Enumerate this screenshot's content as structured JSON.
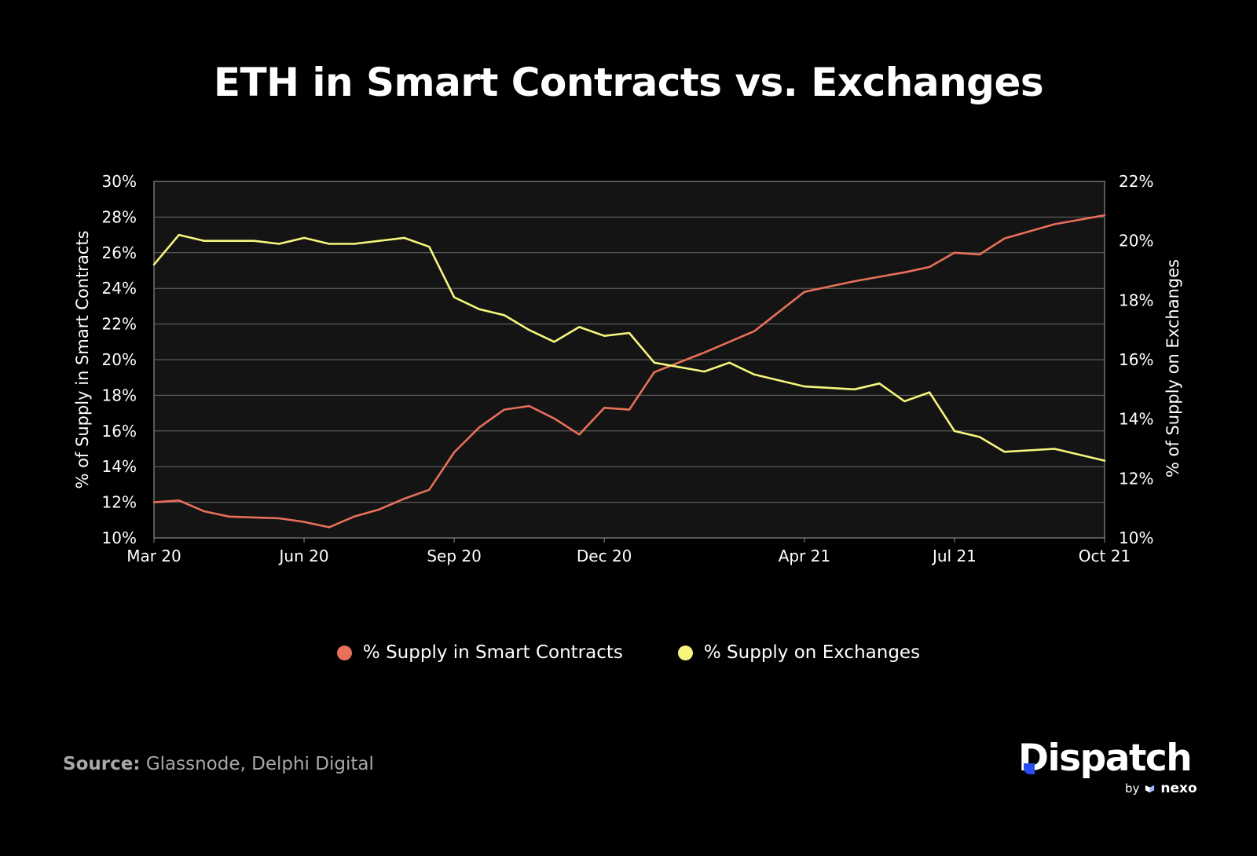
{
  "chart_data": {
    "type": "line",
    "title": "ETH in Smart Contracts vs. Exchanges",
    "x_ticks": [
      "Mar 20",
      "Jun 20",
      "Sep 20",
      "Dec 20",
      "Apr 21",
      "Jul 21",
      "Oct 21"
    ],
    "y_left": {
      "label": "% of Supply in Smart Contracts",
      "ticks": [
        "10%",
        "12%",
        "14%",
        "16%",
        "18%",
        "20%",
        "22%",
        "24%",
        "26%",
        "28%",
        "30%"
      ],
      "range": [
        10,
        30
      ]
    },
    "y_right": {
      "label": "% of Supply on Exchanges",
      "ticks": [
        "10%",
        "12%",
        "14%",
        "16%",
        "18%",
        "20%",
        "22%"
      ],
      "range": [
        10,
        22
      ]
    },
    "grid": true,
    "legend_position": "bottom-center",
    "series": [
      {
        "name": "% Supply in Smart Contracts",
        "axis": "left",
        "color": "#e8705a",
        "points": [
          [
            "Mar 20",
            12.0
          ],
          [
            "Mar 20+",
            12.1
          ],
          [
            "Apr 20",
            11.5
          ],
          [
            "Apr 20+",
            11.2
          ],
          [
            "May 20",
            11.15
          ],
          [
            "May 20+",
            11.1
          ],
          [
            "Jun 20",
            10.9
          ],
          [
            "Jun 20+",
            10.6
          ],
          [
            "Jul 20",
            11.2
          ],
          [
            "Jul 20+",
            11.6
          ],
          [
            "Aug 20",
            12.2
          ],
          [
            "Aug 20+",
            12.7
          ],
          [
            "Sep 20",
            14.8
          ],
          [
            "Sep 20+",
            16.2
          ],
          [
            "Oct 20",
            17.2
          ],
          [
            "Oct 20+",
            17.4
          ],
          [
            "Nov 20",
            16.7
          ],
          [
            "Nov 20+",
            15.8
          ],
          [
            "Dec 20",
            17.3
          ],
          [
            "Dec 20+",
            17.2
          ],
          [
            "Jan 21",
            19.3
          ],
          [
            "Feb 21",
            20.4
          ],
          [
            "Mar 21",
            21.6
          ],
          [
            "Apr 21",
            23.8
          ],
          [
            "Apr 21+",
            24.1
          ],
          [
            "May 21",
            24.4
          ],
          [
            "Jun 21",
            24.9
          ],
          [
            "Jun 21+",
            25.2
          ],
          [
            "Jul 21",
            26.0
          ],
          [
            "Jul 21+",
            25.9
          ],
          [
            "Aug 21",
            26.8
          ],
          [
            "Sep 21",
            27.6
          ],
          [
            "Oct 21",
            28.1
          ]
        ]
      },
      {
        "name": "% Supply on Exchanges",
        "axis": "right",
        "color": "#f6f57c",
        "points": [
          [
            "Mar 20",
            19.2
          ],
          [
            "Mar 20+",
            20.2
          ],
          [
            "Apr 20",
            20.0
          ],
          [
            "May 20",
            20.0
          ],
          [
            "May 20+",
            19.9
          ],
          [
            "Jun 20",
            20.1
          ],
          [
            "Jun 20+",
            19.9
          ],
          [
            "Jul 20",
            19.9
          ],
          [
            "Aug 20",
            20.1
          ],
          [
            "Aug 20+",
            19.8
          ],
          [
            "Sep 20",
            18.1
          ],
          [
            "Sep 20+",
            17.7
          ],
          [
            "Oct 20",
            17.5
          ],
          [
            "Oct 20+",
            17.0
          ],
          [
            "Nov 20",
            16.6
          ],
          [
            "Nov 20+",
            17.1
          ],
          [
            "Dec 20",
            16.8
          ],
          [
            "Dec 20+",
            16.9
          ],
          [
            "Jan 21",
            15.9
          ],
          [
            "Feb 21",
            15.6
          ],
          [
            "Feb 21+",
            15.9
          ],
          [
            "Mar 21",
            15.5
          ],
          [
            "Apr 21",
            15.1
          ],
          [
            "May 21",
            15.0
          ],
          [
            "May 21+",
            15.2
          ],
          [
            "Jun 21",
            14.6
          ],
          [
            "Jun 21+",
            14.9
          ],
          [
            "Jul 21",
            13.6
          ],
          [
            "Jul 21+",
            13.4
          ],
          [
            "Aug 21",
            12.9
          ],
          [
            "Sep 21",
            13.0
          ],
          [
            "Oct 21",
            12.6
          ]
        ]
      }
    ]
  },
  "legend": {
    "items": [
      {
        "label": "% Supply in Smart Contracts",
        "color": "#e8705a"
      },
      {
        "label": "% Supply on Exchanges",
        "color": "#f6f57c"
      }
    ]
  },
  "footer": {
    "source_label": "Source:",
    "source_text": " Glassnode, Delphi Digital"
  },
  "brand": {
    "word": "Dispatch",
    "by": "by",
    "partner": "nexo",
    "accent": "#2a4cf0"
  }
}
